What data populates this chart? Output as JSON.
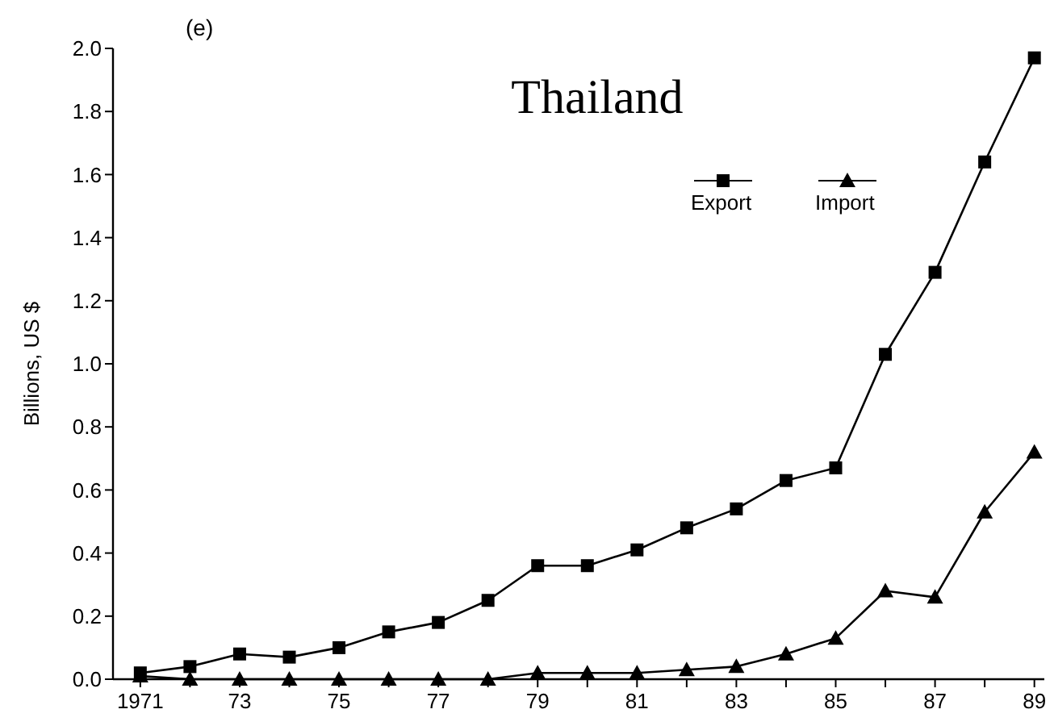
{
  "chart_data": {
    "type": "line",
    "title": "Thailand",
    "ylabel": "Billions, US $",
    "annotations": [
      "(e)"
    ],
    "x": [
      1971,
      1972,
      1973,
      1974,
      1975,
      1976,
      1977,
      1978,
      1979,
      1980,
      1981,
      1982,
      1983,
      1984,
      1985,
      1986,
      1987,
      1988,
      1989
    ],
    "series": [
      {
        "name": "Export",
        "color": "#000000",
        "marker": "square",
        "values": [
          0.02,
          0.04,
          0.08,
          0.07,
          0.1,
          0.15,
          0.18,
          0.25,
          0.36,
          0.36,
          0.41,
          0.48,
          0.54,
          0.63,
          0.67,
          1.03,
          1.29,
          1.64,
          1.97
        ]
      },
      {
        "name": "Import",
        "color": "#000000",
        "marker": "triangle",
        "values": [
          0.01,
          0.0,
          0.0,
          0.0,
          0.0,
          0.0,
          0.0,
          0.0,
          0.02,
          0.02,
          0.02,
          0.03,
          0.04,
          0.08,
          0.13,
          0.28,
          0.26,
          0.53,
          0.72
        ]
      }
    ],
    "xlim": [
      1970.45,
      1989.2
    ],
    "xticks": [
      1971,
      {
        "value": 1972,
        "label": null
      },
      {
        "value": 1973,
        "label": "73"
      },
      {
        "value": 1974,
        "label": null
      },
      {
        "value": 1975,
        "label": "75"
      },
      {
        "value": 1976,
        "label": null
      },
      {
        "value": 1977,
        "label": "77"
      },
      {
        "value": 1978,
        "label": null
      },
      {
        "value": 1979,
        "label": "79"
      },
      {
        "value": 1980,
        "label": null
      },
      {
        "value": 1981,
        "label": "81"
      },
      {
        "value": 1982,
        "label": null
      },
      {
        "value": 1983,
        "label": "83"
      },
      {
        "value": 1984,
        "label": null
      },
      {
        "value": 1985,
        "label": "85"
      },
      {
        "value": 1986,
        "label": null
      },
      {
        "value": 1987,
        "label": "87"
      },
      {
        "value": 1988,
        "label": null
      },
      {
        "value": 1989,
        "label": "89"
      }
    ],
    "ylim": [
      0,
      2.0
    ],
    "yticks": [
      {
        "value": 0,
        "label": "0.0"
      },
      0.2,
      0.4,
      0.6,
      0.8,
      {
        "value": 1,
        "label": "1.0"
      },
      1.2,
      1.4,
      1.6,
      1.8,
      {
        "value": 2,
        "label": "2.0"
      }
    ],
    "grid": false,
    "legend": "top right",
    "line_style": "solid"
  }
}
